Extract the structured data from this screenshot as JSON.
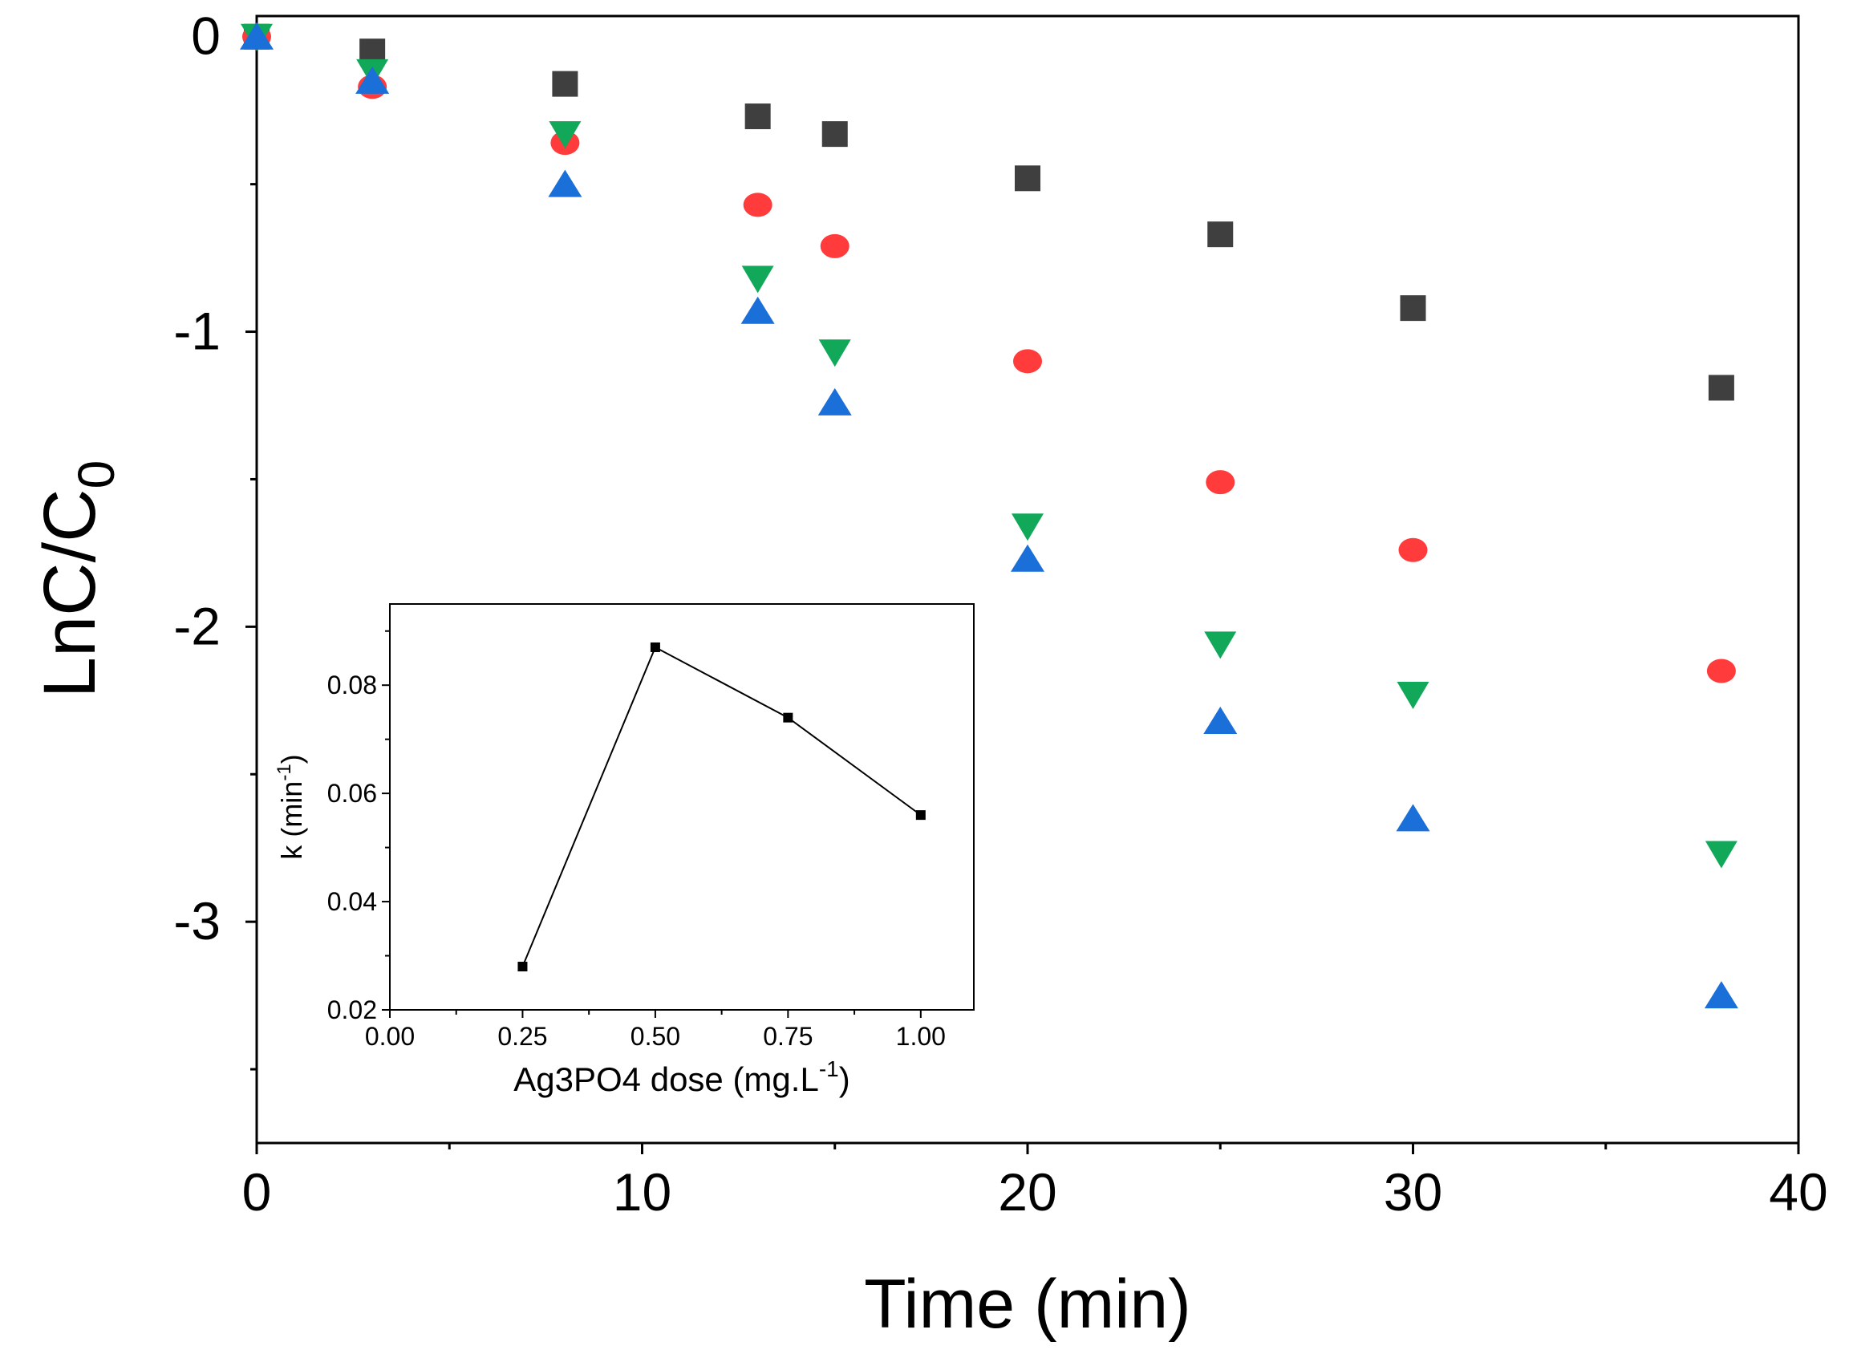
{
  "chart_data": [
    {
      "type": "scatter",
      "xlabel": "Time (min)",
      "ylabel": {
        "main": "LnC/C",
        "sub": "0"
      },
      "xlim": [
        0,
        40
      ],
      "ylim": [
        -3.75,
        0.07
      ],
      "xticks": [
        "0",
        "10",
        "20",
        "30",
        "40"
      ],
      "yticks": [
        "0",
        "-1",
        "-2",
        "-3"
      ],
      "series": [
        {
          "marker": "square",
          "color": "#3f3f3f",
          "x": [
            0,
            3,
            8,
            13,
            15,
            20,
            25,
            30,
            38
          ],
          "y": [
            0,
            -0.05,
            -0.16,
            -0.27,
            -0.33,
            -0.48,
            -0.67,
            -0.92,
            -1.19
          ]
        },
        {
          "marker": "circle",
          "color": "#ff3b3b",
          "x": [
            0,
            3,
            8,
            13,
            15,
            20,
            25,
            30,
            38
          ],
          "y": [
            0,
            -0.17,
            -0.36,
            -0.57,
            -0.71,
            -1.1,
            -1.51,
            -1.74,
            -2.15
          ]
        },
        {
          "marker": "triangle-down",
          "color": "#12a85a",
          "x": [
            0,
            3,
            8,
            13,
            15,
            20,
            25,
            30,
            38
          ],
          "y": [
            0,
            -0.12,
            -0.33,
            -0.82,
            -1.07,
            -1.66,
            -2.06,
            -2.23,
            -2.77
          ]
        },
        {
          "marker": "triangle-up",
          "color": "#1a6fd8",
          "x": [
            0,
            3,
            8,
            13,
            15,
            20,
            25,
            30,
            38
          ],
          "y": [
            0,
            -0.15,
            -0.5,
            -0.93,
            -1.24,
            -1.77,
            -2.32,
            -2.65,
            -3.25
          ]
        }
      ]
    },
    {
      "type": "line",
      "xlabel": {
        "pre": "Ag3PO4 dose (mg.L",
        "sup": "-1",
        "post": ")"
      },
      "ylabel": {
        "pre": "k (min",
        "sup": "-1",
        "post": ")"
      },
      "xlim": [
        0,
        1.1
      ],
      "ylim": [
        0.02,
        0.095
      ],
      "xticks": [
        "0.00",
        "0.25",
        "0.50",
        "0.75",
        "1.00"
      ],
      "yticks": [
        "0.02",
        "0.04",
        "0.06",
        "0.08"
      ],
      "x": [
        0.25,
        0.5,
        0.75,
        1.0
      ],
      "y": [
        0.028,
        0.087,
        0.074,
        0.056
      ],
      "color": "#000000"
    }
  ]
}
